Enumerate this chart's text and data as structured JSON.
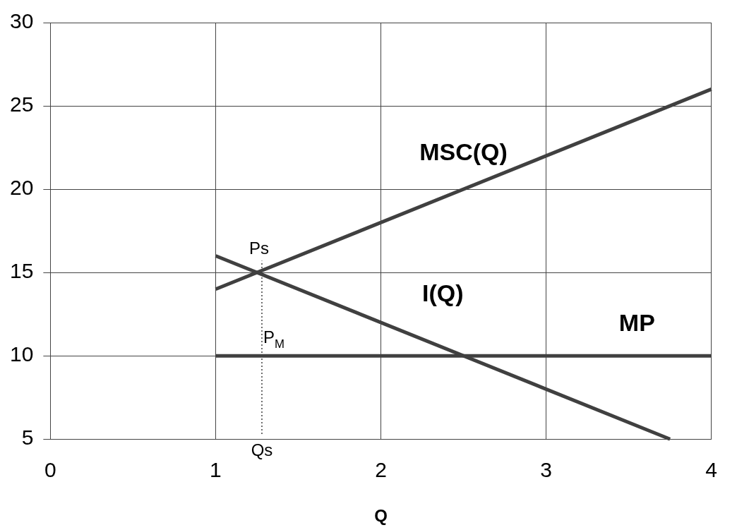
{
  "chart_data": {
    "type": "line",
    "xlabel": "Q",
    "xlim": [
      0,
      4
    ],
    "xticks": [
      0,
      1,
      2,
      3,
      4
    ],
    "ylim": [
      5,
      30
    ],
    "yticks": [
      5,
      10,
      15,
      20,
      25,
      30
    ],
    "grid": true,
    "legend": false,
    "marker": "none",
    "series": [
      {
        "name": "MSC(Q)",
        "color": "#404040",
        "x": [
          1,
          4
        ],
        "values": [
          14,
          26
        ]
      },
      {
        "name": "I(Q)",
        "color": "#404040",
        "x": [
          1,
          3.75
        ],
        "values": [
          16,
          5
        ]
      },
      {
        "name": "MP",
        "color": "#404040",
        "x": [
          1,
          4
        ],
        "values": [
          10,
          10
        ]
      },
      {
        "color": "#404040",
        "x": [
          1.28,
          1.28
        ],
        "values": [
          5.3,
          15.7
        ],
        "line_style": "dotted"
      }
    ],
    "annotations": [
      "Ps",
      "P$_{M}$",
      "Qs"
    ]
  }
}
